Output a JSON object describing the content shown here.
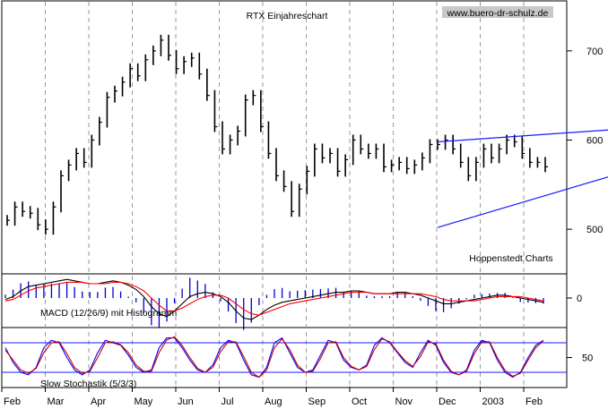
{
  "chart_data": [
    {
      "type": "bar",
      "subtype": "ohlc",
      "title": "RTX Einjahreschart",
      "source_label": "www.buero-dr-schulz.de",
      "credit": "Hoppenstedt Charts",
      "x_labels": [
        "Feb",
        "Mar",
        "Apr",
        "May",
        "Jun",
        "Jul",
        "Aug",
        "Sep",
        "Oct",
        "Nov",
        "Dec",
        "2003",
        "Feb"
      ],
      "y_ticks": [
        500,
        600,
        700
      ],
      "ylim": [
        450,
        755
      ],
      "grid": "vertical dashed at month starts",
      "colors": {
        "bars": "#000000",
        "trendlines": "#1a1aff"
      },
      "close": [
        510,
        525,
        520,
        518,
        505,
        500,
        525,
        560,
        572,
        585,
        575,
        600,
        620,
        648,
        655,
        665,
        680,
        672,
        690,
        700,
        712,
        695,
        680,
        688,
        692,
        674,
        650,
        615,
        590,
        600,
        610,
        645,
        650,
        615,
        585,
        560,
        548,
        520,
        545,
        565,
        590,
        580,
        585,
        565,
        578,
        600,
        590,
        585,
        590,
        570,
        572,
        575,
        568,
        572,
        580,
        595,
        595,
        600,
        590,
        575,
        560,
        575,
        590,
        580,
        590,
        600,
        598,
        585,
        575,
        575,
        570
      ],
      "trendlines": [
        {
          "name": "upper",
          "from": [
            56,
            598
          ],
          "to": [
            101,
            625
          ]
        },
        {
          "name": "lower",
          "from": [
            56,
            502
          ],
          "to": [
            101,
            617
          ]
        }
      ]
    },
    {
      "type": "line",
      "title": "MACD (12/26/9) mit Histogramm",
      "y_ticks": [
        0
      ],
      "series": [
        {
          "color": "#000000",
          "values": [
            -1,
            1,
            5,
            8,
            9,
            10,
            11,
            12,
            13,
            12,
            11,
            10,
            10,
            11,
            12,
            11,
            9,
            6,
            1,
            -6,
            -11,
            -13,
            -9,
            -4,
            1,
            3,
            4,
            3,
            1,
            -3,
            -9,
            -14,
            -15,
            -12,
            -8,
            -5,
            -3,
            -2,
            -1,
            0,
            1,
            2,
            3,
            4,
            4,
            5,
            5,
            4,
            3,
            3,
            3,
            4,
            4,
            3,
            2,
            0,
            -2,
            -4,
            -4,
            -3,
            -2,
            -1,
            0,
            1,
            2,
            2,
            1,
            0,
            -1,
            -2,
            -3
          ]
        },
        {
          "color": "#ff0000",
          "values": [
            -2,
            -1,
            2,
            5,
            7,
            8,
            9,
            10,
            11,
            11,
            11,
            10,
            10,
            10,
            11,
            11,
            10,
            8,
            5,
            0,
            -5,
            -9,
            -9,
            -7,
            -4,
            -1,
            1,
            2,
            2,
            0,
            -4,
            -8,
            -11,
            -12,
            -10,
            -8,
            -6,
            -4,
            -3,
            -2,
            -1,
            0,
            1,
            2,
            3,
            4,
            4,
            4,
            3,
            3,
            3,
            3,
            3,
            3,
            3,
            2,
            1,
            -1,
            -2,
            -2,
            -2,
            -2,
            -1,
            0,
            1,
            1,
            1,
            1,
            0,
            -1,
            -2
          ]
        }
      ],
      "histogram_color": "#0000cc"
    },
    {
      "type": "line",
      "title": "Slow Stochastik (5/3/3)",
      "y_ticks": [
        50
      ],
      "reference_lines": [
        80,
        20
      ],
      "series": [
        {
          "color": "#0000ff",
          "values": [
            70,
            40,
            20,
            15,
            30,
            70,
            85,
            80,
            50,
            25,
            15,
            25,
            60,
            85,
            80,
            75,
            55,
            30,
            20,
            25,
            70,
            90,
            90,
            70,
            45,
            25,
            20,
            35,
            70,
            85,
            80,
            45,
            15,
            10,
            30,
            80,
            90,
            60,
            30,
            20,
            25,
            55,
            85,
            80,
            45,
            30,
            25,
            35,
            75,
            90,
            80,
            60,
            40,
            30,
            60,
            85,
            75,
            40,
            20,
            15,
            25,
            65,
            85,
            80,
            45,
            20,
            10,
            20,
            50,
            75,
            85
          ]
        },
        {
          "color": "#cc0000",
          "values": [
            65,
            45,
            25,
            18,
            28,
            60,
            80,
            82,
            58,
            30,
            18,
            22,
            50,
            80,
            82,
            76,
            60,
            35,
            22,
            22,
            60,
            86,
            92,
            75,
            50,
            28,
            20,
            30,
            62,
            82,
            82,
            52,
            20,
            10,
            25,
            70,
            88,
            66,
            35,
            20,
            22,
            48,
            80,
            82,
            50,
            32,
            25,
            32,
            66,
            88,
            82,
            62,
            44,
            32,
            52,
            82,
            78,
            45,
            22,
            15,
            22,
            58,
            82,
            82,
            50,
            24,
            12,
            18,
            45,
            70,
            84
          ]
        }
      ]
    }
  ]
}
